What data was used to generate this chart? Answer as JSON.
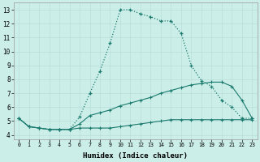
{
  "xlabel": "Humidex (Indice chaleur)",
  "bg_color": "#cceee8",
  "line_color": "#1a7a6e",
  "grid_color": "#b8deda",
  "xlim": [
    -0.5,
    23.5
  ],
  "ylim": [
    3.7,
    13.5
  ],
  "xticks": [
    0,
    1,
    2,
    3,
    4,
    5,
    6,
    7,
    8,
    9,
    10,
    11,
    12,
    13,
    14,
    15,
    16,
    17,
    18,
    19,
    20,
    21,
    22,
    23
  ],
  "yticks": [
    4,
    5,
    6,
    7,
    8,
    9,
    10,
    11,
    12,
    13
  ],
  "line1_x": [
    0,
    1,
    2,
    3,
    4,
    5,
    6,
    7,
    8,
    9,
    10,
    11,
    12,
    13,
    14,
    15,
    16,
    17,
    18,
    19,
    20,
    21,
    22,
    23
  ],
  "line1_y": [
    5.2,
    4.6,
    4.5,
    4.4,
    4.4,
    4.4,
    4.5,
    4.5,
    4.5,
    4.5,
    4.6,
    4.7,
    4.8,
    4.9,
    5.0,
    5.1,
    5.1,
    5.1,
    5.1,
    5.1,
    5.1,
    5.1,
    5.1,
    5.1
  ],
  "line2_x": [
    0,
    1,
    2,
    3,
    4,
    5,
    6,
    7,
    8,
    9,
    10,
    11,
    12,
    13,
    14,
    15,
    16,
    17,
    18,
    19,
    20,
    21,
    22,
    23
  ],
  "line2_y": [
    5.2,
    4.6,
    4.5,
    4.4,
    4.4,
    4.4,
    4.8,
    5.4,
    5.6,
    5.8,
    6.1,
    6.3,
    6.5,
    6.7,
    7.0,
    7.2,
    7.4,
    7.6,
    7.7,
    7.8,
    7.8,
    7.5,
    6.5,
    5.2
  ],
  "line3_x": [
    0,
    1,
    2,
    3,
    4,
    5,
    6,
    7,
    8,
    9,
    10,
    11,
    12,
    13,
    14,
    15,
    16,
    17,
    18,
    19,
    20,
    21,
    22,
    23
  ],
  "line3_y": [
    5.2,
    4.6,
    4.5,
    4.4,
    4.4,
    4.4,
    5.3,
    7.0,
    8.6,
    10.6,
    13.0,
    13.0,
    12.7,
    12.5,
    12.2,
    12.2,
    11.3,
    9.0,
    7.9,
    7.5,
    6.5,
    6.0,
    5.2,
    5.2
  ],
  "line3_linestyle": "dotted"
}
